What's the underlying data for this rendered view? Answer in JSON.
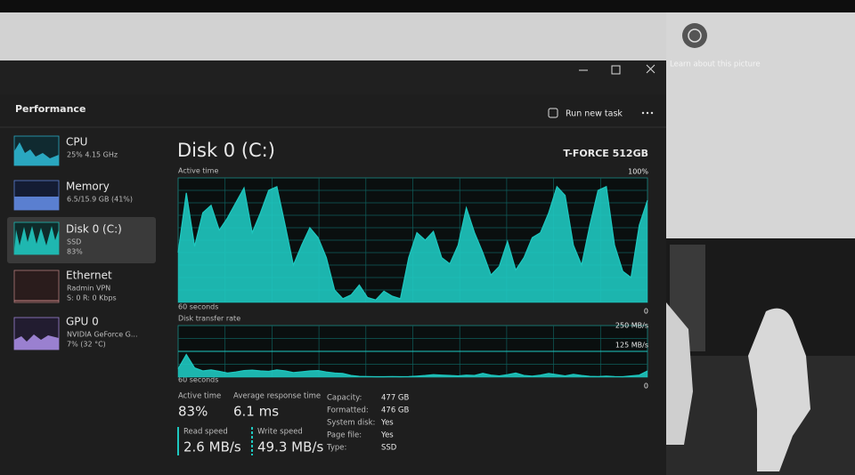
{
  "screen": {
    "learn_about": "Learn about this picture"
  },
  "window": {
    "title": "Performance",
    "run_new_task": "Run new task",
    "sidebar": [
      {
        "name": "CPU",
        "details": [
          "25% 4.15 GHz"
        ]
      },
      {
        "name": "Memory",
        "details": [
          "6.5/15.9 GB (41%)"
        ]
      },
      {
        "name": "Disk 0 (C:)",
        "details": [
          "SSD",
          "83%"
        ]
      },
      {
        "name": "Ethernet",
        "details": [
          "Radmin VPN",
          "S: 0 R: 0 Kbps"
        ]
      },
      {
        "name": "GPU 0",
        "details": [
          "NVIDIA GeForce G...",
          "7% (32 °C)"
        ]
      }
    ],
    "disk": {
      "title": "Disk 0 (C:)",
      "model": "T-FORCE 512GB",
      "active_time_graph": {
        "label": "Active time",
        "time_label": "60 seconds",
        "color": "#1ec8c0",
        "ylim": [
          0,
          100
        ],
        "yticks": [
          0,
          {
            "value": 100,
            "label": "100%"
          }
        ],
        "values": [
          40,
          88,
          45,
          72,
          78,
          58,
          68,
          80,
          92,
          56,
          72,
          90,
          93,
          62,
          30,
          46,
          60,
          52,
          36,
          10,
          3,
          6,
          14,
          4,
          2,
          9,
          5,
          3,
          36,
          56,
          50,
          57,
          36,
          31,
          46,
          76,
          56,
          40,
          22,
          29,
          49,
          26,
          36,
          52,
          56,
          72,
          93,
          86,
          46,
          30,
          62,
          90,
          93,
          46,
          25,
          20,
          62,
          82
        ]
      },
      "transfer_graph": {
        "label": "Disk transfer rate",
        "time_label": "60 seconds",
        "color": "#1ec8c0",
        "ylim": [
          0,
          250
        ],
        "yticks": [
          0,
          {
            "value": 125,
            "label": "125 MB/s"
          },
          {
            "value": 250,
            "label": "250 MB/s"
          }
        ],
        "values": [
          40,
          110,
          45,
          30,
          35,
          28,
          20,
          25,
          32,
          34,
          30,
          28,
          35,
          30,
          22,
          26,
          30,
          32,
          25,
          20,
          18,
          8,
          4,
          3,
          2,
          2,
          3,
          2,
          3,
          5,
          8,
          12,
          10,
          8,
          6,
          10,
          8,
          18,
          10,
          6,
          12,
          20,
          8,
          5,
          10,
          18,
          12,
          6,
          14,
          8,
          4,
          3,
          5,
          3,
          2,
          6,
          10,
          30
        ]
      },
      "stats": [
        {
          "label": "Active time",
          "value": "83%"
        },
        {
          "label": "Average response time",
          "value": "6.1 ms"
        },
        {
          "label": "Read speed",
          "value": "2.6 MB/s"
        },
        {
          "label": "Write speed",
          "value": "49.3 MB/s"
        }
      ],
      "properties": [
        [
          "Capacity:",
          "477 GB"
        ],
        [
          "Formatted:",
          "476 GB"
        ],
        [
          "System disk:",
          "Yes"
        ],
        [
          "Page file:",
          "Yes"
        ],
        [
          "Type:",
          "SSD"
        ]
      ]
    }
  }
}
